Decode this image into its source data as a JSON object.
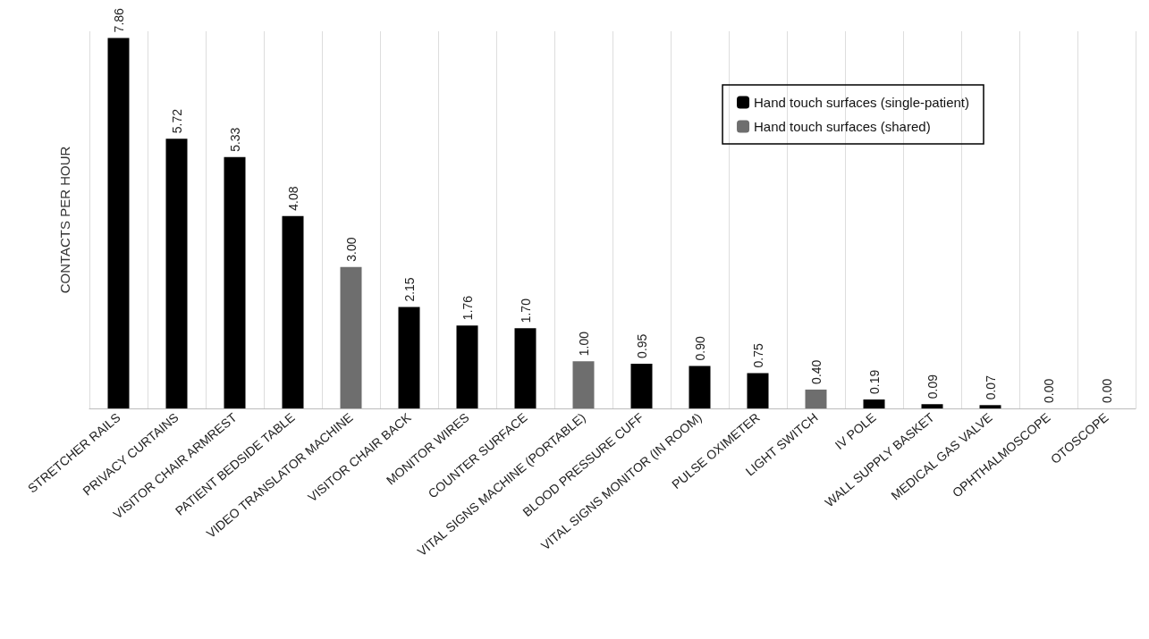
{
  "chart_data": {
    "type": "bar",
    "ylabel": "CONTACTS PER HOUR",
    "categories": [
      "STRETCHER RAILS",
      "PRIVACY CURTAINS",
      "VISITOR CHAIR ARMREST",
      "PATIENT BEDSIDE TABLE",
      "VIDEO TRANSLATOR MACHINE",
      "VISITOR CHAIR BACK",
      "MONITOR WIRES",
      "COUNTER SURFACE",
      "VITAL SIGNS MACHINE (PORTABLE)",
      "BLOOD PRESSURE CUFF",
      "VITAL SIGNS MONITOR (IN ROOM)",
      "PULSE OXIMETER",
      "LIGHT SWITCH",
      "IV POLE",
      "WALL SUPPLY BASKET",
      "MEDICAL GAS VALVE",
      "OPHTHALMOSCOPE",
      "OTOSCOPE"
    ],
    "series": [
      {
        "name": "Hand touch surfaces (single-patient)",
        "color": "#000000",
        "values": [
          7.86,
          5.72,
          5.33,
          4.08,
          null,
          2.15,
          1.76,
          1.7,
          null,
          0.95,
          0.9,
          0.75,
          null,
          0.19,
          0.09,
          0.07,
          0,
          0
        ],
        "value_labels": [
          "7.86",
          "5.72",
          "5.33",
          "4.08",
          null,
          "2.15",
          "1.76",
          "1.70",
          null,
          "0.95",
          "0.90",
          "0.75",
          null,
          "0.19",
          "0.09",
          "0.07",
          "0.00",
          "0.00"
        ]
      },
      {
        "name": "Hand touch surfaces (shared)",
        "color": "#6e6e6e",
        "values": [
          null,
          null,
          null,
          null,
          3,
          null,
          null,
          null,
          1,
          null,
          null,
          null,
          0.4,
          null,
          null,
          null,
          null,
          null
        ],
        "value_labels": [
          null,
          null,
          null,
          null,
          "3.00",
          null,
          null,
          null,
          "1.00",
          null,
          null,
          null,
          "0.40",
          null,
          null,
          null,
          null,
          null
        ]
      }
    ],
    "legend": "top right",
    "grid": "x"
  }
}
